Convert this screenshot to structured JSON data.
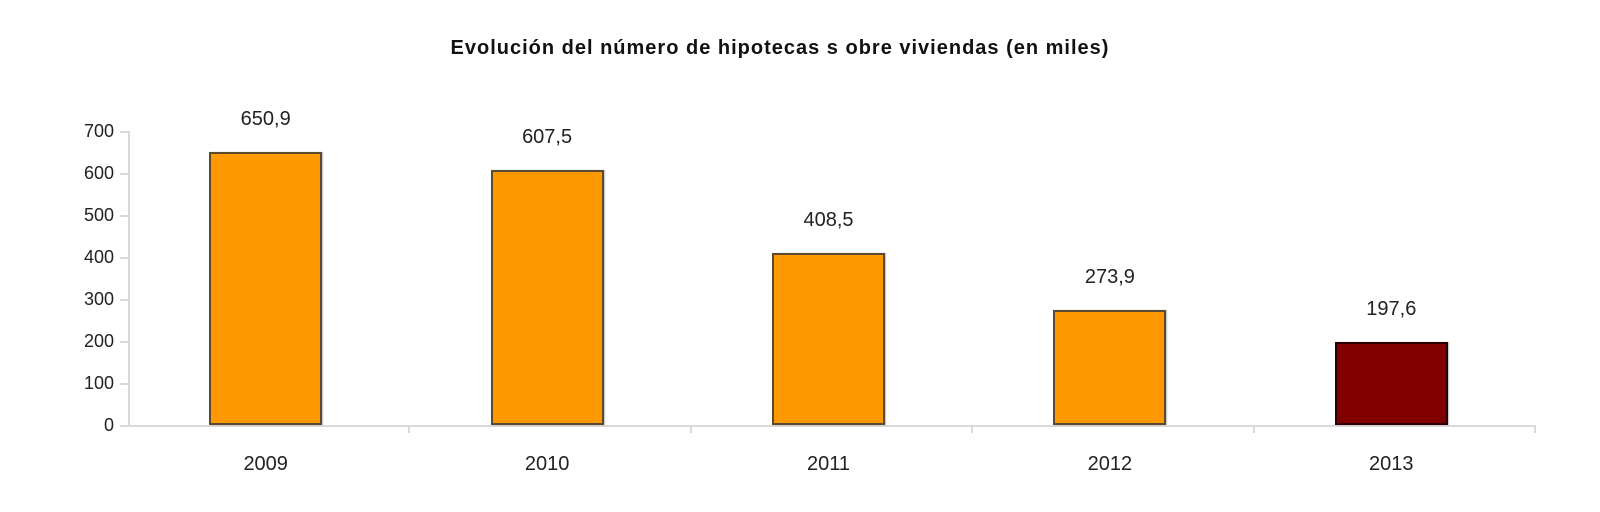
{
  "chart_data": {
    "type": "bar",
    "title": "Evolución delnúmero de hipotecas sobre viviendas (en miles)",
    "xlabel": "",
    "ylabel": "",
    "categories": [
      "2009",
      "2010",
      "2011",
      "2012",
      "2013"
    ],
    "values": [
      650.9,
      607.5,
      408.5,
      273.9,
      197.6
    ],
    "value_labels": [
      "650,9",
      "607,5",
      "408,5",
      "273,9",
      "197,6"
    ],
    "bar_colors": [
      "#FF9900",
      "#FF9900",
      "#FF9900",
      "#FF9900",
      "#800000"
    ],
    "ylim": [
      0,
      700
    ],
    "yticks": [
      "0",
      "100",
      "200",
      "300",
      "400",
      "500",
      "600",
      "700"
    ],
    "grid": false,
    "legend": null
  },
  "title": "Evolución del número de hipotecas s obre viviendas (en miles)"
}
